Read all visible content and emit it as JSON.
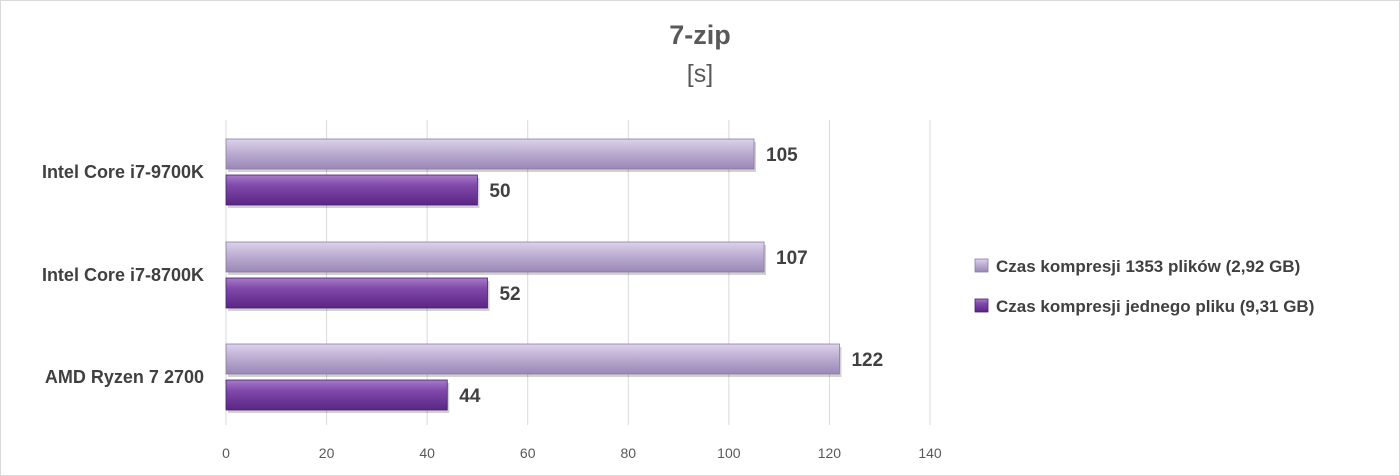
{
  "chart_data": {
    "type": "bar",
    "orientation": "horizontal",
    "title": "7-zip",
    "subtitle": "[s]",
    "categories": [
      "Intel Core i7-9700K",
      "Intel Core i7-8700K",
      "AMD Ryzen 7 2700"
    ],
    "series": [
      {
        "name": "Czas kompresji 1353 plików (2,92 GB)",
        "values": [
          105,
          107,
          122
        ],
        "color": "#b3a2c7"
      },
      {
        "name": "Czas kompresji jednego pliku (9,31 GB)",
        "values": [
          50,
          52,
          44
        ],
        "color": "#7030a0"
      }
    ],
    "xlim": [
      0,
      140
    ],
    "xticks": [
      0,
      20,
      40,
      60,
      80,
      100,
      120,
      140
    ],
    "grid": true,
    "legend": "right"
  }
}
